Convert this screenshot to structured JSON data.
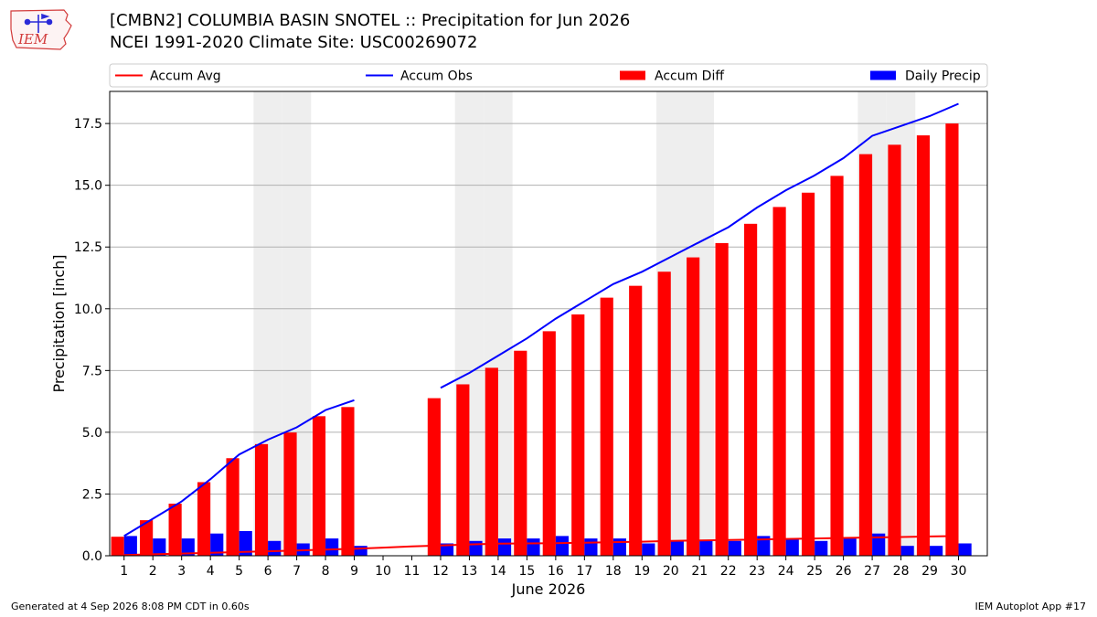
{
  "logo": {
    "text": "IEM"
  },
  "header": {
    "title_line1": "[CMBN2] COLUMBIA BASIN SNOTEL :: Precipitation for Jun 2026",
    "title_line2": "NCEI 1991-2020 Climate Site: USC00269072"
  },
  "footer": {
    "left": "Generated at 4 Sep 2026 8:08 PM CDT in 0.60s",
    "right": "IEM Autoplot App #17"
  },
  "colors": {
    "accum_avg": "#ff0000",
    "accum_obs": "#0000ff",
    "accum_diff": "#ff0000",
    "daily_precip": "#0000ff",
    "weekend_band": "#eeeeee",
    "grid": "#b0b0b0"
  },
  "chart_data": {
    "type": "bar",
    "xlabel": "June 2026",
    "ylabel": "Precipitation [inch]",
    "ylim": [
      0,
      18.8
    ],
    "yticks": [
      0.0,
      2.5,
      5.0,
      7.5,
      10.0,
      12.5,
      15.0,
      17.5
    ],
    "ytick_labels": [
      "0.0",
      "2.5",
      "5.0",
      "7.5",
      "10.0",
      "12.5",
      "15.0",
      "17.5"
    ],
    "grid": "horizontal",
    "legend_position": "top",
    "weekend_days": [
      6,
      7,
      13,
      14,
      20,
      21,
      27,
      28
    ],
    "days": [
      1,
      2,
      3,
      4,
      5,
      6,
      7,
      8,
      9,
      10,
      11,
      12,
      13,
      14,
      15,
      16,
      17,
      18,
      19,
      20,
      21,
      22,
      23,
      24,
      25,
      26,
      27,
      28,
      29,
      30
    ],
    "series": [
      {
        "name": "Accum Avg",
        "kind": "line",
        "color": "#ff0000",
        "values": [
          0.03,
          0.06,
          0.09,
          0.12,
          0.15,
          0.18,
          0.21,
          0.25,
          0.28,
          0.33,
          0.38,
          0.42,
          0.46,
          0.49,
          0.5,
          0.51,
          0.53,
          0.55,
          0.57,
          0.6,
          0.62,
          0.64,
          0.66,
          0.68,
          0.7,
          0.72,
          0.74,
          0.76,
          0.78,
          0.8
        ]
      },
      {
        "name": "Accum Obs",
        "kind": "line",
        "color": "#0000ff",
        "values": [
          0.8,
          1.5,
          2.2,
          3.1,
          4.1,
          4.7,
          5.2,
          5.9,
          6.3,
          null,
          null,
          6.8,
          7.4,
          8.1,
          8.8,
          9.6,
          10.3,
          11.0,
          11.5,
          12.1,
          12.7,
          13.3,
          14.1,
          14.8,
          15.4,
          16.1,
          17.0,
          17.4,
          17.8,
          18.3
        ]
      },
      {
        "name": "Accum Diff",
        "kind": "bar",
        "color": "#ff0000",
        "values": [
          0.77,
          1.44,
          2.11,
          2.98,
          3.95,
          4.52,
          4.99,
          5.65,
          6.02,
          null,
          null,
          6.38,
          6.94,
          7.61,
          8.3,
          9.09,
          9.77,
          10.45,
          10.93,
          11.5,
          12.08,
          12.66,
          13.44,
          14.12,
          14.7,
          15.38,
          16.26,
          16.64,
          17.02,
          17.5
        ]
      },
      {
        "name": "Daily Precip",
        "kind": "bar",
        "color": "#0000ff",
        "values": [
          0.8,
          0.7,
          0.7,
          0.9,
          1.0,
          0.6,
          0.5,
          0.7,
          0.4,
          null,
          null,
          0.5,
          0.6,
          0.7,
          0.7,
          0.8,
          0.7,
          0.7,
          0.5,
          0.6,
          0.6,
          0.6,
          0.8,
          0.7,
          0.6,
          0.7,
          0.9,
          0.4,
          0.4,
          0.5
        ]
      }
    ]
  }
}
